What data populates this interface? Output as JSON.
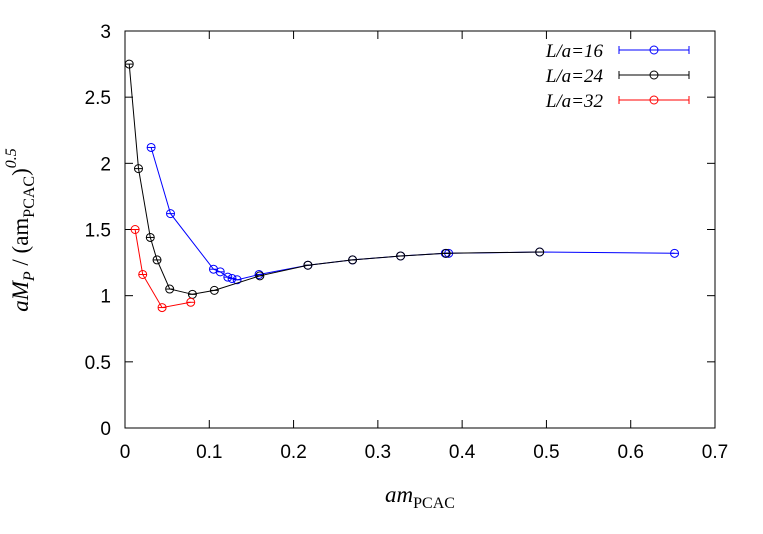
{
  "chart_data": {
    "type": "scatter",
    "xlabel": {
      "base": "am",
      "sub": "PCAC"
    },
    "ylabel": {
      "prefix": "aM",
      "prefix_sub": "P",
      "middle": " / (am",
      "middle_sub": "PCAC",
      "suffix": ")",
      "power": "0.5"
    },
    "xlim": [
      0,
      0.7
    ],
    "ylim": [
      0,
      3
    ],
    "xticks": [
      "0",
      "0.1",
      "0.2",
      "0.3",
      "0.4",
      "0.5",
      "0.6",
      "0.7"
    ],
    "yticks": [
      "0",
      "0.5",
      "1",
      "1.5",
      "2",
      "2.5",
      "3"
    ],
    "grid": false,
    "legend_position": "top-right",
    "series": [
      {
        "name": "L/a=16",
        "color": "#0000ff",
        "points": [
          [
            0.031,
            2.12
          ],
          [
            0.054,
            1.62
          ],
          [
            0.105,
            1.2
          ],
          [
            0.113,
            1.18
          ],
          [
            0.122,
            1.14
          ],
          [
            0.127,
            1.13
          ],
          [
            0.133,
            1.12
          ],
          [
            0.159,
            1.16
          ],
          [
            0.217,
            1.23
          ],
          [
            0.27,
            1.27
          ],
          [
            0.327,
            1.3
          ],
          [
            0.38,
            1.32
          ],
          [
            0.384,
            1.32
          ],
          [
            0.492,
            1.33
          ],
          [
            0.652,
            1.32
          ]
        ]
      },
      {
        "name": "L/a=24",
        "color": "#000000",
        "points": [
          [
            0.005,
            2.75
          ],
          [
            0.016,
            1.96
          ],
          [
            0.03,
            1.44
          ],
          [
            0.038,
            1.27
          ],
          [
            0.053,
            1.05
          ],
          [
            0.08,
            1.01
          ],
          [
            0.106,
            1.04
          ],
          [
            0.16,
            1.15
          ],
          [
            0.217,
            1.23
          ],
          [
            0.27,
            1.27
          ],
          [
            0.327,
            1.3
          ],
          [
            0.381,
            1.32
          ],
          [
            0.492,
            1.33
          ]
        ]
      },
      {
        "name": "L/a=32",
        "color": "#ff0000",
        "points": [
          [
            0.012,
            1.5
          ],
          [
            0.021,
            1.16
          ],
          [
            0.044,
            0.91
          ],
          [
            0.078,
            0.95
          ]
        ]
      }
    ]
  }
}
